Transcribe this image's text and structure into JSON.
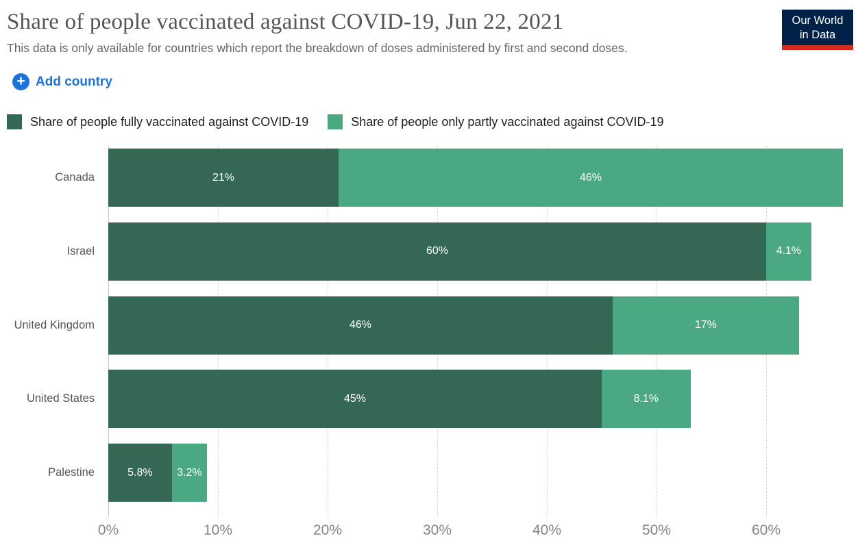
{
  "header": {
    "title": "Share of people vaccinated against COVID-19, Jun 22, 2021",
    "subtitle": "This data is only available for countries which report the breakdown of doses administered by first and second doses.",
    "logo": {
      "line1": "Our World",
      "line2": "in Data"
    }
  },
  "controls": {
    "add_country_label": "Add country"
  },
  "icons": {
    "plus_icon": "+"
  },
  "colors": {
    "fully_vaccinated": "#346854",
    "partly_vaccinated": "#4aa983",
    "accent_blue": "#1b72d8",
    "logo_navy": "#002147",
    "logo_red": "#d42b21",
    "axis_text": "#858585",
    "gridline": "#d8d8d8"
  },
  "legend": [
    {
      "label": "Share of people fully vaccinated against COVID-19",
      "color": "#346854"
    },
    {
      "label": "Share of people only partly vaccinated against COVID-19",
      "color": "#4aa983"
    }
  ],
  "chart_data": {
    "type": "bar",
    "orientation": "horizontal",
    "stacked": true,
    "title": "Share of people vaccinated against COVID-19, Jun 22, 2021",
    "categories": [
      "Canada",
      "Israel",
      "United Kingdom",
      "United States",
      "Palestine"
    ],
    "series": [
      {
        "name": "Share of people fully vaccinated against COVID-19",
        "color": "#346854",
        "values": [
          21,
          60,
          46,
          45,
          5.8
        ],
        "labels": [
          "21%",
          "60%",
          "46%",
          "45%",
          "5.8%"
        ]
      },
      {
        "name": "Share of people only partly vaccinated against COVID-19",
        "color": "#4aa983",
        "values": [
          46,
          4.1,
          17,
          8.1,
          3.2
        ],
        "labels": [
          "46%",
          "4.1%",
          "17%",
          "8.1%",
          "3.2%"
        ]
      }
    ],
    "x_ticks": [
      "0%",
      "10%",
      "20%",
      "30%",
      "40%",
      "50%",
      "60%"
    ],
    "x_tick_values": [
      0,
      10,
      20,
      30,
      40,
      50,
      60
    ],
    "xlim": [
      0,
      68.4
    ],
    "grid": "vertical-dashed",
    "legend_position": "top"
  }
}
